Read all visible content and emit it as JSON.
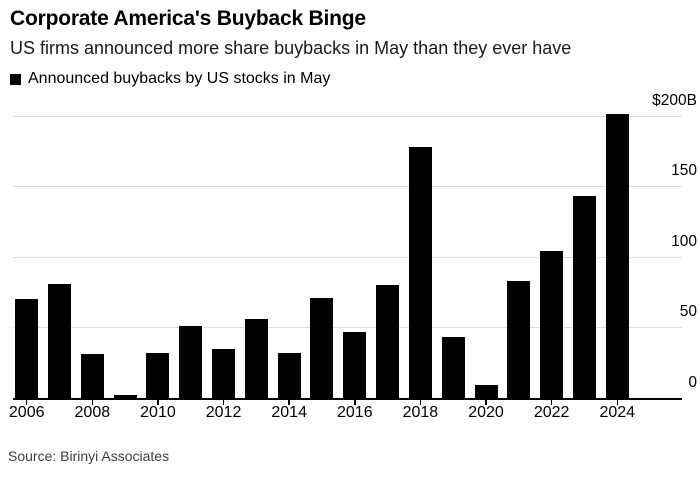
{
  "header": {
    "title": "Corporate America's Buyback Binge",
    "subtitle": "US firms announced more share buybacks in May than they ever have"
  },
  "legend": {
    "swatch_icon": "black-square-icon",
    "swatch_color": "#000000",
    "label": "Announced buybacks by US stocks in May"
  },
  "chart_data": {
    "type": "bar",
    "title": "Corporate America's Buyback Binge",
    "subtitle": "US firms announced more share buybacks in May than they ever have",
    "legend": [
      "Announced buybacks by US stocks in May"
    ],
    "legend_position": "top-left",
    "unit": "billions USD",
    "categories": [
      "2006",
      "2007",
      "2008",
      "2009",
      "2010",
      "2011",
      "2012",
      "2013",
      "2014",
      "2015",
      "2016",
      "2017",
      "2018",
      "2019",
      "2020",
      "2021",
      "2022",
      "2023",
      "2024"
    ],
    "values": [
      70,
      81,
      31,
      2,
      32,
      51,
      35,
      56,
      32,
      71,
      47,
      80,
      178,
      43,
      9,
      83,
      104,
      143,
      201
    ],
    "xlabel": "",
    "ylabel": "",
    "ylim": [
      0,
      205
    ],
    "yticks": [
      200,
      150,
      100,
      50,
      0
    ],
    "ytick_labels": [
      "$200B",
      "150",
      "100",
      "50",
      "0"
    ],
    "xtick_labels": [
      "2006",
      "2008",
      "2010",
      "2012",
      "2014",
      "2016",
      "2018",
      "2020",
      "2022",
      "2024"
    ],
    "grid": "horizontal",
    "bar_color": "#000000",
    "grid_color": "#dcdcdc",
    "axis_color": "#000000"
  },
  "footer": {
    "source": "Source: Birinyi Associates"
  },
  "colors": {
    "background": "#ffffff",
    "bar": "#000000",
    "gridline": "#dcdcdc",
    "source_text": "#3f3f3f"
  }
}
